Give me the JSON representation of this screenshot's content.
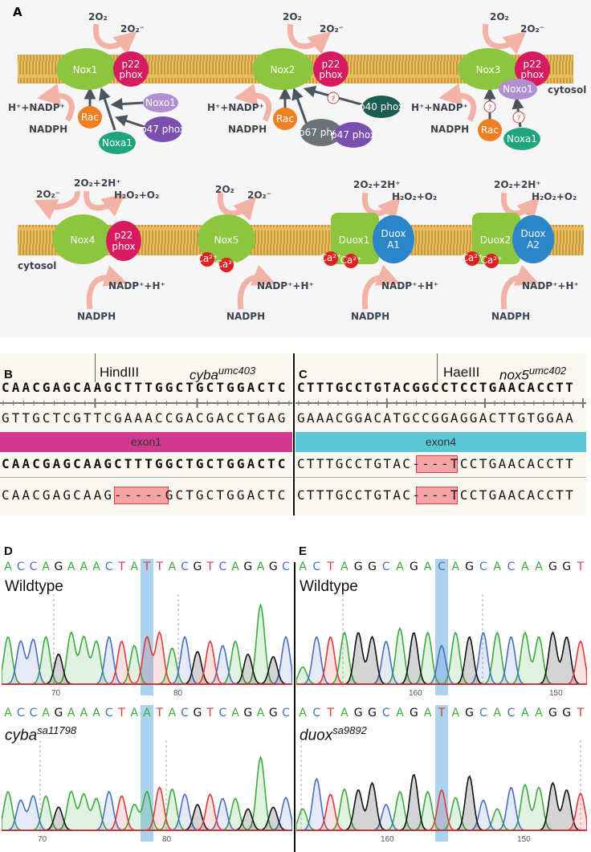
{
  "panel_a": {
    "label": "A",
    "cytosol": "cytosol",
    "row1": [
      {
        "enzyme": "Nox1",
        "partner": [
          "p22",
          "phox"
        ],
        "o2": "2O₂",
        "product": "2O₂⁻",
        "nadp": "H⁺+NADP⁺",
        "nadph": "NADPH",
        "regulators": [
          "Rac",
          "Noxo1",
          "p47 phox",
          "Noxa1"
        ]
      },
      {
        "enzyme": "Nox2",
        "partner": [
          "p22",
          "phox"
        ],
        "o2": "2O₂",
        "product": "2O₂⁻",
        "nadp": "H⁺+NADP⁺",
        "nadph": "NADPH",
        "regulators": [
          "Rac",
          "p67 phox",
          "p47 phox",
          "p40 phox"
        ],
        "unknown": "?"
      },
      {
        "enzyme": "Nox3",
        "partner": [
          "p22",
          "phox"
        ],
        "o2": "2O₂",
        "product": "2O₂⁻",
        "nadp": "H⁺+NADP⁺",
        "nadph": "NADPH",
        "regulators": [
          "Noxo1",
          "Rac",
          "Noxa1"
        ],
        "unknown": "?"
      }
    ],
    "row2": [
      {
        "enzyme": "Nox4",
        "partner": [
          "p22",
          "phox"
        ],
        "substrate": "2O₂+2H⁺",
        "product1": "2O₂⁻",
        "product2": "H₂O₂+O₂",
        "nadp": "NADP⁺+H⁺",
        "nadph": "NADPH"
      },
      {
        "enzyme": "Nox5",
        "o2": "2O₂",
        "product": "2O₂⁻",
        "nadp": "NADP⁺+H⁺",
        "nadph": "NADPH",
        "ca": "Ca²⁺"
      },
      {
        "enzyme": "Duox1",
        "partner": [
          "Duox",
          "A1"
        ],
        "substrate": "2O₂+2H⁺",
        "product": "H₂O₂+O₂",
        "nadp": "NADP⁺+H⁺",
        "nadph": "NADPH",
        "ca": "Ca²⁺"
      },
      {
        "enzyme": "Duox2",
        "partner": [
          "Duox",
          "A2"
        ],
        "substrate": "2O₂+2H⁺",
        "product": "H₂O₂+O₂",
        "nadp": "NADP⁺+H⁺",
        "nadph": "NADPH",
        "ca": "Ca²⁺"
      }
    ],
    "colors": {
      "nox": "#8cc63f",
      "p22phox": "#d81b60",
      "rac": "#f07f22",
      "noxo1": "#b08fd0",
      "p47phox": "#7a4fb0",
      "noxa1": "#1fa57d",
      "p67phox": "#6b7378",
      "p40phox": "#1d5c52",
      "duoxa": "#2b86c9",
      "ca": "#e02020",
      "membrane": "#d9a84a",
      "arrow": "#f2b3a6"
    }
  },
  "panel_b": {
    "label": "B",
    "enzyme": "HindIII",
    "gene": "cyba",
    "allele": "umc403",
    "seq_top": "CAACGAGCAAGCTTTGGCTGCTGGACTC",
    "seq_comp": "GTTGCTCGTTCGAAACCGACGACCTGAG",
    "exon": "exon1",
    "exon_color": "#d0398e",
    "seq_wt": "CAACGAGCAAGCTTTGGCTGCTGGACTC",
    "seq_mut": "CAACGAGCAAG-----GCTGCTGGACTC"
  },
  "panel_c": {
    "label": "C",
    "enzyme": "HaeIII",
    "gene": "nox5",
    "allele": "umc402",
    "seq_top": "CTTTGCCTGTACGGCCTCCTGAACACCTT",
    "seq_comp": "GAAACGGACATGCCGGAGGACTTGTGGAA",
    "exon": "exon4",
    "exon_color": "#5bc6d6",
    "seq_mut1": "CTTTGCCTGTAC----TCCTGAACACCTT",
    "seq_mut2": "CTTTGCCTGTAC----TCCTGAACACCTT"
  },
  "panel_d": {
    "label": "D",
    "wildtype": {
      "label": "Wildtype",
      "bases": "ACCAGAAACTATTACGTCAGAGC",
      "highlight": 11,
      "ticks": [
        "70",
        "80"
      ],
      "heights": [
        0.55,
        0.5,
        0.52,
        0.55,
        0.35,
        0.6,
        0.55,
        0.5,
        0.55,
        0.5,
        0.45,
        0.55,
        0.6,
        0.42,
        0.55,
        0.38,
        0.5,
        0.45,
        0.5,
        0.35,
        0.92,
        0.32,
        0.55
      ]
    },
    "mutant": {
      "gene": "cyba",
      "allele": "sa11798",
      "bases": "ACCAGAAACTAATACGTCAGAGC",
      "highlight": 11,
      "ticks": [
        "70",
        "80"
      ],
      "heights": [
        0.45,
        0.35,
        0.4,
        0.4,
        0.27,
        0.45,
        0.42,
        0.37,
        0.45,
        0.4,
        0.3,
        0.45,
        0.5,
        0.48,
        0.42,
        0.3,
        0.42,
        0.37,
        0.37,
        0.25,
        0.85,
        0.27,
        0.38
      ]
    }
  },
  "panel_e": {
    "label": "E",
    "wildtype": {
      "label": "Wildtype",
      "bases": "ACTAGGCAGACAGCACAAGGT",
      "highlight": 10,
      "ticks": [
        "160",
        "150"
      ],
      "heights": [
        0.2,
        0.55,
        0.55,
        0.6,
        0.6,
        0.55,
        0.5,
        0.65,
        0.6,
        0.6,
        0.45,
        0.6,
        0.55,
        0.6,
        0.6,
        0.55,
        0.6,
        0.55,
        0.6,
        0.55,
        0.5
      ]
    },
    "mutant": {
      "gene": "duox",
      "allele": "sa9892",
      "bases": "ACTAGGCAGATAGCACAAGGT",
      "highlight": 10,
      "ticks": [
        "160",
        "150"
      ],
      "heights": [
        0.25,
        0.6,
        0.42,
        0.48,
        0.47,
        0.55,
        0.3,
        0.45,
        0.65,
        0.45,
        0.47,
        0.38,
        0.63,
        0.35,
        0.25,
        0.5,
        0.53,
        0.5,
        0.55,
        0.47,
        0.43
      ]
    }
  },
  "base_colors": {
    "A": "#3daa3d",
    "C": "#4a6fc0",
    "G": "#111111",
    "T": "#e03a3a"
  }
}
